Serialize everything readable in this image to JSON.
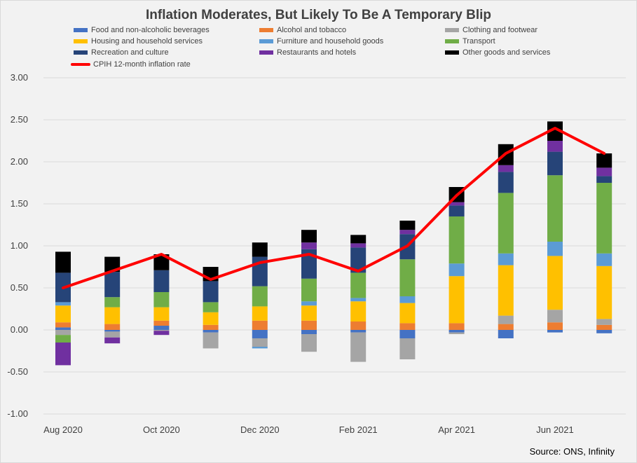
{
  "chart_data": {
    "type": "bar",
    "subtype": "stacked-bar-with-line",
    "title": "Inflation Moderates, But Likely To Be A Temporary Blip",
    "source": "Source: ONS, Infinity",
    "categories": [
      "Aug 2020",
      "Sep 2020",
      "Oct 2020",
      "Nov 2020",
      "Dec 2020",
      "Jan 2021",
      "Feb 2021",
      "Mar 2021",
      "Apr 2021",
      "May 2021",
      "Jun 2021",
      "Jul 2021"
    ],
    "x_tick_labels": [
      "Aug 2020",
      "",
      "Oct 2020",
      "",
      "Dec 2020",
      "",
      "Feb 2021",
      "",
      "Apr 2021",
      "",
      "Jun 2021",
      ""
    ],
    "ylim": [
      -1.0,
      3.0
    ],
    "y_ticks": [
      "3.00",
      "2.50",
      "2.00",
      "1.50",
      "1.00",
      "0.50",
      "0.00",
      "-0.50",
      "-1.00"
    ],
    "y_tick_values": [
      3.0,
      2.5,
      2.0,
      1.5,
      1.0,
      0.5,
      0.0,
      -0.5,
      -1.0
    ],
    "grid": true,
    "legend_position": "top",
    "series": [
      {
        "name": "Food and non-alcoholic beverages",
        "color": "#4472c4",
        "values": [
          0.03,
          -0.02,
          0.05,
          -0.03,
          -0.1,
          -0.05,
          -0.03,
          -0.1,
          -0.03,
          -0.1,
          -0.03,
          -0.04
        ]
      },
      {
        "name": "Alcohol and tobacco",
        "color": "#ed7d31",
        "values": [
          0.06,
          0.07,
          0.06,
          0.06,
          0.11,
          0.11,
          0.1,
          0.08,
          0.08,
          0.07,
          0.09,
          0.06
        ]
      },
      {
        "name": "Clothing and footwear",
        "color": "#a5a5a5",
        "values": [
          -0.06,
          -0.07,
          -0.01,
          -0.19,
          -0.1,
          -0.21,
          -0.35,
          -0.25,
          -0.02,
          0.1,
          0.15,
          0.07
        ]
      },
      {
        "name": "Housing and household services",
        "color": "#ffc000",
        "values": [
          0.2,
          0.2,
          0.16,
          0.15,
          0.17,
          0.18,
          0.24,
          0.24,
          0.56,
          0.6,
          0.64,
          0.63
        ]
      },
      {
        "name": "Furniture and household goods",
        "color": "#5b9bd5",
        "values": [
          0.04,
          0.0,
          0.0,
          0.0,
          -0.02,
          0.05,
          0.04,
          0.08,
          0.15,
          0.14,
          0.17,
          0.15
        ]
      },
      {
        "name": "Transport",
        "color": "#70ad47",
        "values": [
          -0.09,
          0.12,
          0.18,
          0.12,
          0.24,
          0.27,
          0.3,
          0.44,
          0.56,
          0.72,
          0.79,
          0.84
        ]
      },
      {
        "name": "Recreation and culture",
        "color": "#264478",
        "values": [
          0.35,
          0.3,
          0.26,
          0.25,
          0.35,
          0.35,
          0.3,
          0.3,
          0.13,
          0.25,
          0.28,
          0.08
        ]
      },
      {
        "name": "Restaurants and hotels",
        "color": "#7030a0",
        "values": [
          -0.27,
          -0.07,
          -0.05,
          0.0,
          0.0,
          0.08,
          0.05,
          0.05,
          0.04,
          0.08,
          0.13,
          0.1
        ]
      },
      {
        "name": "Other goods and services",
        "color": "#000000",
        "values": [
          0.25,
          0.18,
          0.19,
          0.17,
          0.17,
          0.15,
          0.1,
          0.11,
          0.18,
          0.25,
          0.23,
          0.17
        ]
      }
    ],
    "line_series": {
      "name": "CPIH 12-month inflation rate",
      "color": "#ff0000",
      "values": [
        0.5,
        0.7,
        0.9,
        0.6,
        0.8,
        0.9,
        0.7,
        1.0,
        1.6,
        2.1,
        2.4,
        2.1
      ]
    }
  }
}
